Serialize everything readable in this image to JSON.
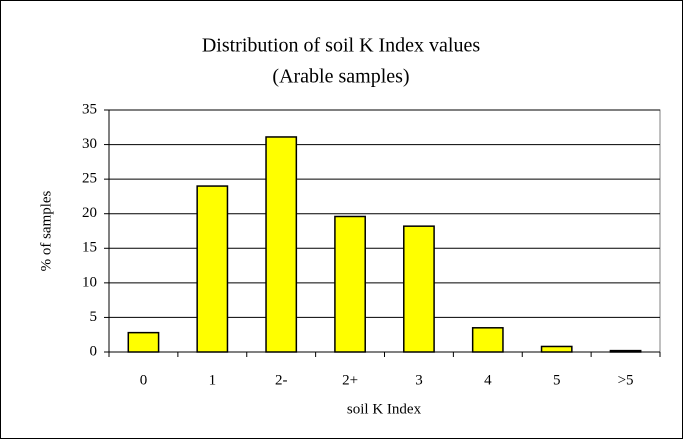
{
  "chart_data": {
    "type": "bar",
    "title": "Distribution of soil K Index values",
    "subtitle": "(Arable samples)",
    "x_label": "soil K Index",
    "y_label": "% of samples",
    "categories": [
      "0",
      "1",
      "2-",
      "2+",
      "3",
      "4",
      "5",
      ">5"
    ],
    "values": [
      2.8,
      24,
      31.1,
      19.6,
      18.2,
      3.5,
      0.8,
      0.2
    ],
    "color": "#ffff00",
    "ylim": [
      0,
      35
    ],
    "yticks": [
      0,
      5,
      10,
      15,
      20,
      25,
      30,
      35
    ],
    "grid": true
  }
}
